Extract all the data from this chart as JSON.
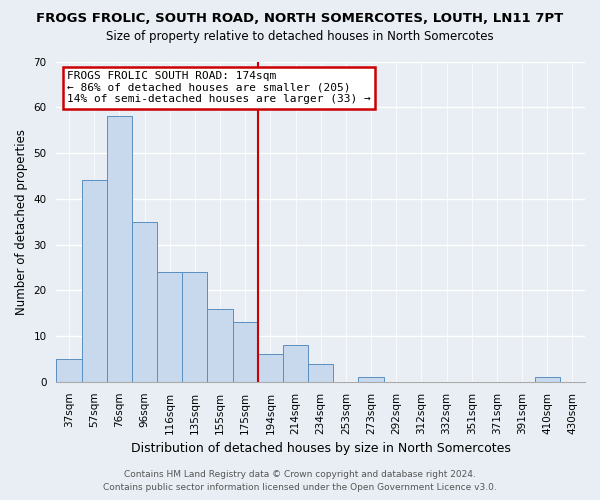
{
  "title": "FROGS FROLIC, SOUTH ROAD, NORTH SOMERCOTES, LOUTH, LN11 7PT",
  "subtitle": "Size of property relative to detached houses in North Somercotes",
  "xlabel": "Distribution of detached houses by size in North Somercotes",
  "ylabel": "Number of detached properties",
  "bar_color": "#c8d9ed",
  "bar_edge_color": "#5a8fc0",
  "categories": [
    "37sqm",
    "57sqm",
    "76sqm",
    "96sqm",
    "116sqm",
    "135sqm",
    "155sqm",
    "175sqm",
    "194sqm",
    "214sqm",
    "234sqm",
    "253sqm",
    "273sqm",
    "292sqm",
    "312sqm",
    "332sqm",
    "351sqm",
    "371sqm",
    "391sqm",
    "410sqm",
    "430sqm"
  ],
  "values": [
    5,
    44,
    58,
    35,
    24,
    24,
    16,
    13,
    6,
    8,
    4,
    0,
    1,
    0,
    0,
    0,
    0,
    0,
    0,
    1,
    0
  ],
  "ylim": [
    0,
    70
  ],
  "yticks": [
    0,
    10,
    20,
    30,
    40,
    50,
    60,
    70
  ],
  "vline_index": 7,
  "vline_color": "#cc0000",
  "annotation_title": "FROGS FROLIC SOUTH ROAD: 174sqm",
  "annotation_line1": "← 86% of detached houses are smaller (205)",
  "annotation_line2": "14% of semi-detached houses are larger (33) →",
  "annotation_box_color": "#ffffff",
  "annotation_box_edge": "#cc0000",
  "footer_line1": "Contains HM Land Registry data © Crown copyright and database right 2024.",
  "footer_line2": "Contains public sector information licensed under the Open Government Licence v3.0.",
  "bg_color": "#e8eef4",
  "grid_color": "#ffffff",
  "title_fontsize": 9.5,
  "subtitle_fontsize": 8.5,
  "ylabel_fontsize": 8.5,
  "xlabel_fontsize": 9.0,
  "tick_fontsize": 7.5,
  "footer_fontsize": 6.5,
  "annot_fontsize": 8.0
}
